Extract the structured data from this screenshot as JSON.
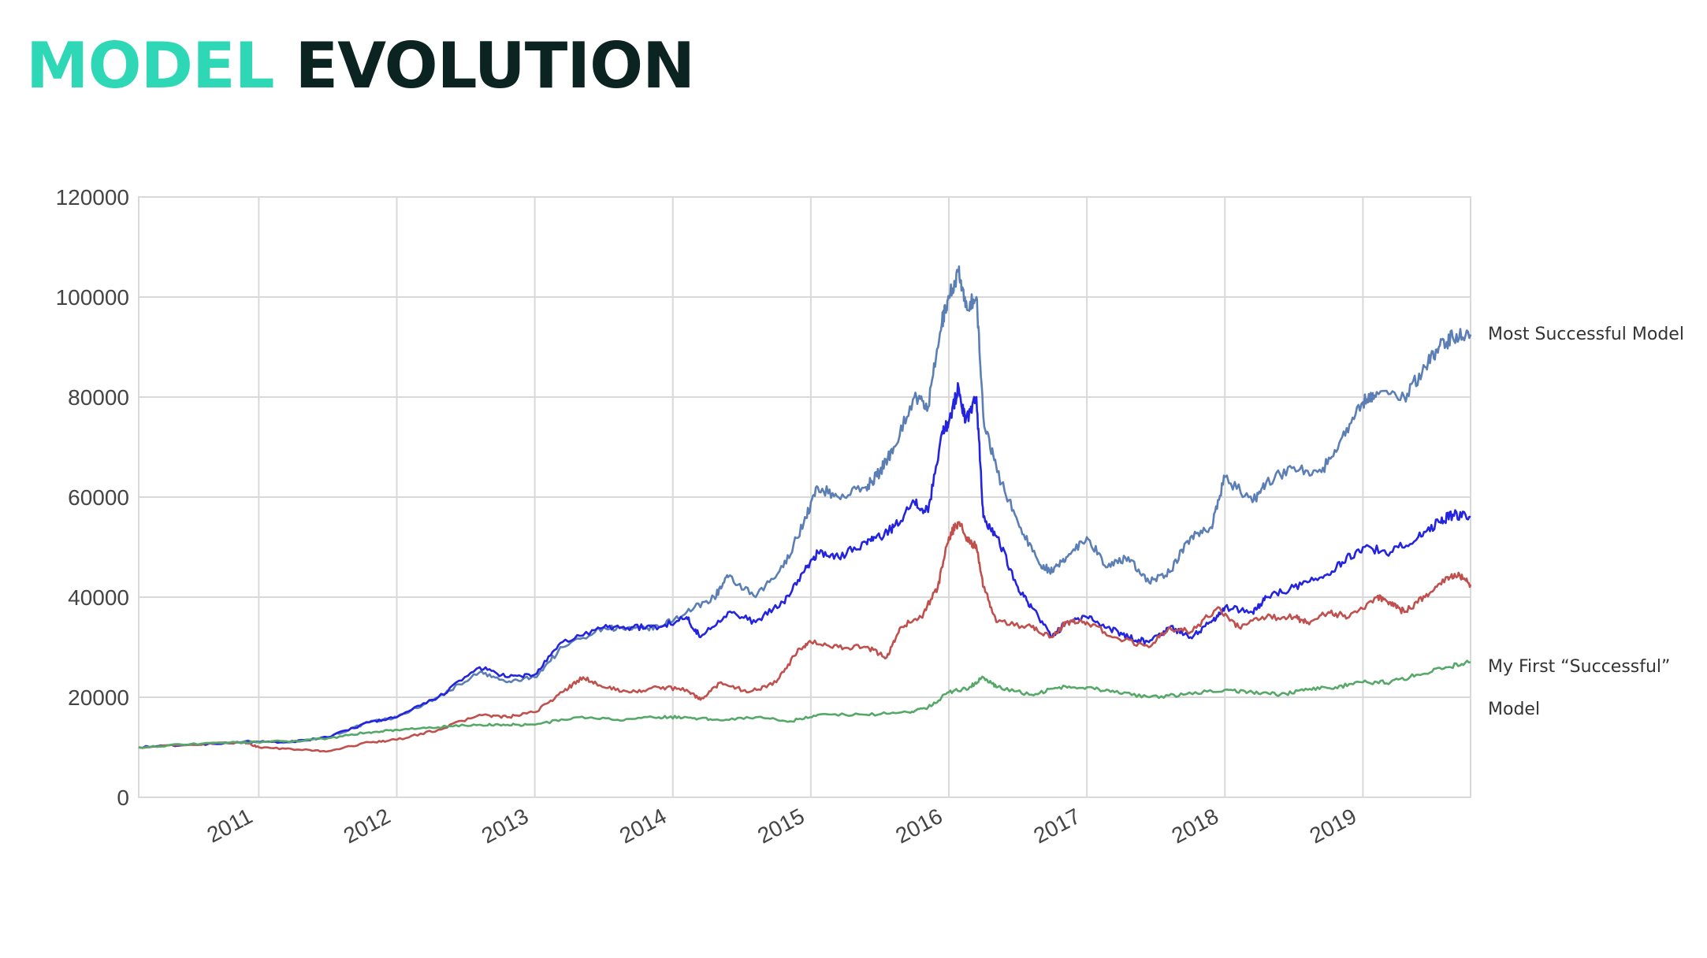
{
  "title": {
    "accent": "MODEL",
    "main": "EVOLUTION"
  },
  "annotations": {
    "top_series": "Most Successful Model",
    "green_series_line1": "My First “Successful”",
    "green_series_line2": "Model"
  },
  "colors": {
    "title_accent": "#2ed8b6",
    "title_main": "#0b2321",
    "grid": "#d9d9d9"
  },
  "chart_data": {
    "type": "line",
    "title": "",
    "xlabel": "",
    "ylabel": "",
    "xlim": [
      2010.13,
      2019.78
    ],
    "ylim": [
      0,
      120000
    ],
    "yticks": [
      0,
      20000,
      40000,
      60000,
      80000,
      100000,
      120000
    ],
    "xticks": [
      "2011",
      "2012",
      "2013",
      "2014",
      "2015",
      "2016",
      "2017",
      "2018",
      "2019"
    ],
    "xtick_values": [
      2011,
      2012,
      2013,
      2014,
      2015,
      2016,
      2017,
      2018,
      2019
    ],
    "grid": true,
    "legend": "none",
    "series": [
      {
        "color": "#5b7fb5",
        "points": [
          [
            2010.13,
            10000
          ],
          [
            2010.5,
            10500
          ],
          [
            2010.9,
            11200
          ],
          [
            2011.2,
            11000
          ],
          [
            2011.5,
            12000
          ],
          [
            2011.8,
            15000
          ],
          [
            2012.0,
            16000
          ],
          [
            2012.3,
            20000
          ],
          [
            2012.6,
            25000
          ],
          [
            2012.8,
            23000
          ],
          [
            2013.0,
            24000
          ],
          [
            2013.2,
            30000
          ],
          [
            2013.5,
            34000
          ],
          [
            2013.7,
            33500
          ],
          [
            2013.9,
            34000
          ],
          [
            2014.1,
            37000
          ],
          [
            2014.3,
            40000
          ],
          [
            2014.4,
            44000
          ],
          [
            2014.6,
            40000
          ],
          [
            2014.8,
            46000
          ],
          [
            2014.95,
            55000
          ],
          [
            2015.05,
            62000
          ],
          [
            2015.2,
            60000
          ],
          [
            2015.4,
            62000
          ],
          [
            2015.5,
            65000
          ],
          [
            2015.6,
            70000
          ],
          [
            2015.75,
            80000
          ],
          [
            2015.85,
            78000
          ],
          [
            2015.95,
            95000
          ],
          [
            2016.0,
            100000
          ],
          [
            2016.07,
            105000
          ],
          [
            2016.12,
            98000
          ],
          [
            2016.2,
            100000
          ],
          [
            2016.25,
            76000
          ],
          [
            2016.35,
            65000
          ],
          [
            2016.5,
            55000
          ],
          [
            2016.65,
            47000
          ],
          [
            2016.75,
            45000
          ],
          [
            2016.85,
            48000
          ],
          [
            2017.0,
            52000
          ],
          [
            2017.15,
            46000
          ],
          [
            2017.3,
            48000
          ],
          [
            2017.45,
            43000
          ],
          [
            2017.6,
            45000
          ],
          [
            2017.75,
            52000
          ],
          [
            2017.9,
            54000
          ],
          [
            2018.0,
            64000
          ],
          [
            2018.2,
            59000
          ],
          [
            2018.3,
            63000
          ],
          [
            2018.5,
            66000
          ],
          [
            2018.7,
            65000
          ],
          [
            2018.85,
            72000
          ],
          [
            2019.0,
            79000
          ],
          [
            2019.1,
            81000
          ],
          [
            2019.3,
            80000
          ],
          [
            2019.45,
            86000
          ],
          [
            2019.55,
            90000
          ],
          [
            2019.65,
            92000
          ],
          [
            2019.78,
            92500
          ]
        ]
      },
      {
        "color": "#2424e0",
        "points": [
          [
            2010.13,
            10000
          ],
          [
            2010.5,
            10500
          ],
          [
            2010.9,
            11000
          ],
          [
            2011.2,
            11000
          ],
          [
            2011.5,
            12000
          ],
          [
            2011.8,
            15000
          ],
          [
            2012.0,
            16000
          ],
          [
            2012.3,
            20000
          ],
          [
            2012.6,
            26000
          ],
          [
            2012.8,
            24000
          ],
          [
            2013.0,
            24500
          ],
          [
            2013.2,
            31000
          ],
          [
            2013.5,
            34000
          ],
          [
            2013.7,
            34000
          ],
          [
            2013.9,
            34000
          ],
          [
            2014.1,
            36000
          ],
          [
            2014.2,
            32000
          ],
          [
            2014.4,
            37000
          ],
          [
            2014.6,
            35000
          ],
          [
            2014.8,
            39000
          ],
          [
            2014.95,
            45000
          ],
          [
            2015.05,
            49000
          ],
          [
            2015.2,
            48000
          ],
          [
            2015.4,
            51000
          ],
          [
            2015.5,
            52000
          ],
          [
            2015.6,
            54000
          ],
          [
            2015.75,
            59000
          ],
          [
            2015.85,
            57000
          ],
          [
            2015.95,
            73000
          ],
          [
            2016.0,
            75000
          ],
          [
            2016.07,
            82000
          ],
          [
            2016.12,
            75000
          ],
          [
            2016.2,
            80000
          ],
          [
            2016.25,
            56000
          ],
          [
            2016.35,
            52000
          ],
          [
            2016.5,
            42000
          ],
          [
            2016.6,
            38000
          ],
          [
            2016.75,
            32000
          ],
          [
            2016.85,
            35000
          ],
          [
            2017.0,
            36000
          ],
          [
            2017.15,
            34000
          ],
          [
            2017.3,
            32000
          ],
          [
            2017.45,
            31000
          ],
          [
            2017.6,
            34000
          ],
          [
            2017.75,
            32000
          ],
          [
            2017.9,
            35000
          ],
          [
            2018.0,
            38000
          ],
          [
            2018.2,
            37000
          ],
          [
            2018.3,
            40000
          ],
          [
            2018.5,
            42000
          ],
          [
            2018.7,
            44000
          ],
          [
            2018.85,
            47000
          ],
          [
            2019.0,
            50000
          ],
          [
            2019.2,
            49000
          ],
          [
            2019.4,
            52000
          ],
          [
            2019.55,
            55000
          ],
          [
            2019.65,
            56500
          ],
          [
            2019.78,
            56000
          ]
        ]
      },
      {
        "color": "#c0504d",
        "points": [
          [
            2010.13,
            10000
          ],
          [
            2010.5,
            10500
          ],
          [
            2010.9,
            11000
          ],
          [
            2011.0,
            10000
          ],
          [
            2011.3,
            9500
          ],
          [
            2011.5,
            9200
          ],
          [
            2011.8,
            11000
          ],
          [
            2012.0,
            11500
          ],
          [
            2012.3,
            13500
          ],
          [
            2012.6,
            16500
          ],
          [
            2012.8,
            16000
          ],
          [
            2013.0,
            17000
          ],
          [
            2013.2,
            21000
          ],
          [
            2013.35,
            24000
          ],
          [
            2013.5,
            22000
          ],
          [
            2013.7,
            21000
          ],
          [
            2013.9,
            22000
          ],
          [
            2014.1,
            21500
          ],
          [
            2014.2,
            19500
          ],
          [
            2014.35,
            23000
          ],
          [
            2014.55,
            21000
          ],
          [
            2014.75,
            23000
          ],
          [
            2014.9,
            29000
          ],
          [
            2015.0,
            31000
          ],
          [
            2015.2,
            30000
          ],
          [
            2015.4,
            30000
          ],
          [
            2015.55,
            28000
          ],
          [
            2015.65,
            34000
          ],
          [
            2015.8,
            36000
          ],
          [
            2015.92,
            42000
          ],
          [
            2016.0,
            52000
          ],
          [
            2016.07,
            55000
          ],
          [
            2016.15,
            51000
          ],
          [
            2016.2,
            50000
          ],
          [
            2016.25,
            42000
          ],
          [
            2016.35,
            35000
          ],
          [
            2016.6,
            34000
          ],
          [
            2016.75,
            32000
          ],
          [
            2016.85,
            35000
          ],
          [
            2017.0,
            35000
          ],
          [
            2017.2,
            32000
          ],
          [
            2017.45,
            30000
          ],
          [
            2017.6,
            34000
          ],
          [
            2017.75,
            33000
          ],
          [
            2017.95,
            38000
          ],
          [
            2018.1,
            34000
          ],
          [
            2018.3,
            36000
          ],
          [
            2018.5,
            36000
          ],
          [
            2018.6,
            35000
          ],
          [
            2018.75,
            37000
          ],
          [
            2018.9,
            36000
          ],
          [
            2019.1,
            40000
          ],
          [
            2019.2,
            39000
          ],
          [
            2019.3,
            37000
          ],
          [
            2019.45,
            40000
          ],
          [
            2019.6,
            44000
          ],
          [
            2019.7,
            44500
          ],
          [
            2019.78,
            42500
          ]
        ]
      },
      {
        "color": "#55a868",
        "points": [
          [
            2010.13,
            10000
          ],
          [
            2010.5,
            10600
          ],
          [
            2010.9,
            11000
          ],
          [
            2011.2,
            11200
          ],
          [
            2011.5,
            11800
          ],
          [
            2011.8,
            13000
          ],
          [
            2012.0,
            13500
          ],
          [
            2012.3,
            14000
          ],
          [
            2012.6,
            14500
          ],
          [
            2012.8,
            14500
          ],
          [
            2013.0,
            14500
          ],
          [
            2013.3,
            16000
          ],
          [
            2013.6,
            15500
          ],
          [
            2013.9,
            16000
          ],
          [
            2014.1,
            16000
          ],
          [
            2014.3,
            15500
          ],
          [
            2014.6,
            16000
          ],
          [
            2014.85,
            15200
          ],
          [
            2015.05,
            16500
          ],
          [
            2015.4,
            16500
          ],
          [
            2015.7,
            17000
          ],
          [
            2015.85,
            18000
          ],
          [
            2016.0,
            21000
          ],
          [
            2016.15,
            22000
          ],
          [
            2016.25,
            24000
          ],
          [
            2016.35,
            22000
          ],
          [
            2016.6,
            20500
          ],
          [
            2016.8,
            22000
          ],
          [
            2017.0,
            22000
          ],
          [
            2017.2,
            21000
          ],
          [
            2017.45,
            20000
          ],
          [
            2017.7,
            20500
          ],
          [
            2018.0,
            21500
          ],
          [
            2018.2,
            21000
          ],
          [
            2018.4,
            20500
          ],
          [
            2018.6,
            21500
          ],
          [
            2018.8,
            22000
          ],
          [
            2019.0,
            23000
          ],
          [
            2019.2,
            23000
          ],
          [
            2019.4,
            24500
          ],
          [
            2019.6,
            26000
          ],
          [
            2019.78,
            27000
          ]
        ]
      }
    ]
  }
}
